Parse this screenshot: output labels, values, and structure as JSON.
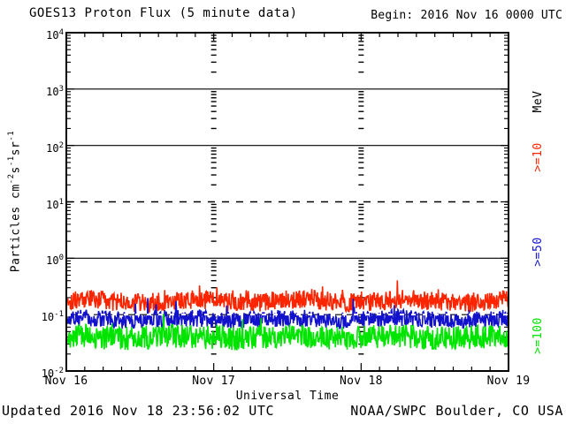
{
  "header": {
    "title": "GOES13 Proton Flux (5 minute data)",
    "begin_label": "Begin: 2016 Nov 16 0000 UTC"
  },
  "footer": {
    "updated": "Updated 2016 Nov 18 23:56:02 UTC",
    "source": "NOAA/SWPC Boulder, CO USA"
  },
  "colors": {
    "background": "#ffffff",
    "axis": "#000000",
    "series_ge10": "#fb2500",
    "series_ge50": "#1212cc",
    "series_ge100": "#00e400"
  },
  "chart_data": {
    "type": "line",
    "title": "GOES13 Proton Flux (5 minute data)",
    "xlabel": "Universal Time",
    "ylabel_parts": [
      {
        "t": "Particles cm"
      },
      {
        "s": "-2"
      },
      {
        "t": "s"
      },
      {
        "s": "-1"
      },
      {
        "t": "sr"
      },
      {
        "s": "-1"
      }
    ],
    "right_axis_label": "MeV",
    "x_ticks": [
      "Nov 16",
      "Nov 17",
      "Nov 18",
      "Nov 19"
    ],
    "x_tick_positions_days": [
      0,
      1,
      2,
      3
    ],
    "x_range_days": 3,
    "x_minor_ticks_per_day": 8,
    "points_per_day": 288,
    "y_log_exponents": [
      4,
      3,
      2,
      1,
      0,
      -1,
      -2
    ],
    "y_range": [
      0.01,
      10000
    ],
    "solid_gridlines_log10": [
      3,
      2,
      0,
      -1
    ],
    "dashed_gridlines_log10": [
      1
    ],
    "grid_day_dash_columns_days": [
      1,
      2
    ],
    "white_dash_overlay_log10": -1,
    "series": [
      {
        "name": "p_ge_10MeV",
        "label": ">=10",
        "color": "#fb2500",
        "baseline_log10": -0.76,
        "noise_log10": 0.17,
        "spike_log10": 0.22,
        "spike_prob": 0.05,
        "wobble_log10": 0.03,
        "approx_range_flux": [
          0.1,
          0.45
        ],
        "seed": 101
      },
      {
        "name": "p_ge_50MeV",
        "label": ">=50",
        "color": "#1212cc",
        "baseline_log10": -1.08,
        "noise_log10": 0.15,
        "spike_log10": 0.28,
        "spike_prob": 0.03,
        "wobble_log10": 0.02,
        "approx_range_flux": [
          0.05,
          0.2
        ],
        "seed": 202
      },
      {
        "name": "p_ge_100MeV",
        "label": ">=100",
        "color": "#00e400",
        "baseline_log10": -1.4,
        "noise_log10": 0.21,
        "spike_log10": 0.24,
        "spike_prob": 0.03,
        "wobble_log10": 0.02,
        "approx_range_flux": [
          0.02,
          0.1
        ],
        "seed": 303
      }
    ],
    "legend_position": "right-margin-rotated",
    "grid": "log-decades"
  }
}
